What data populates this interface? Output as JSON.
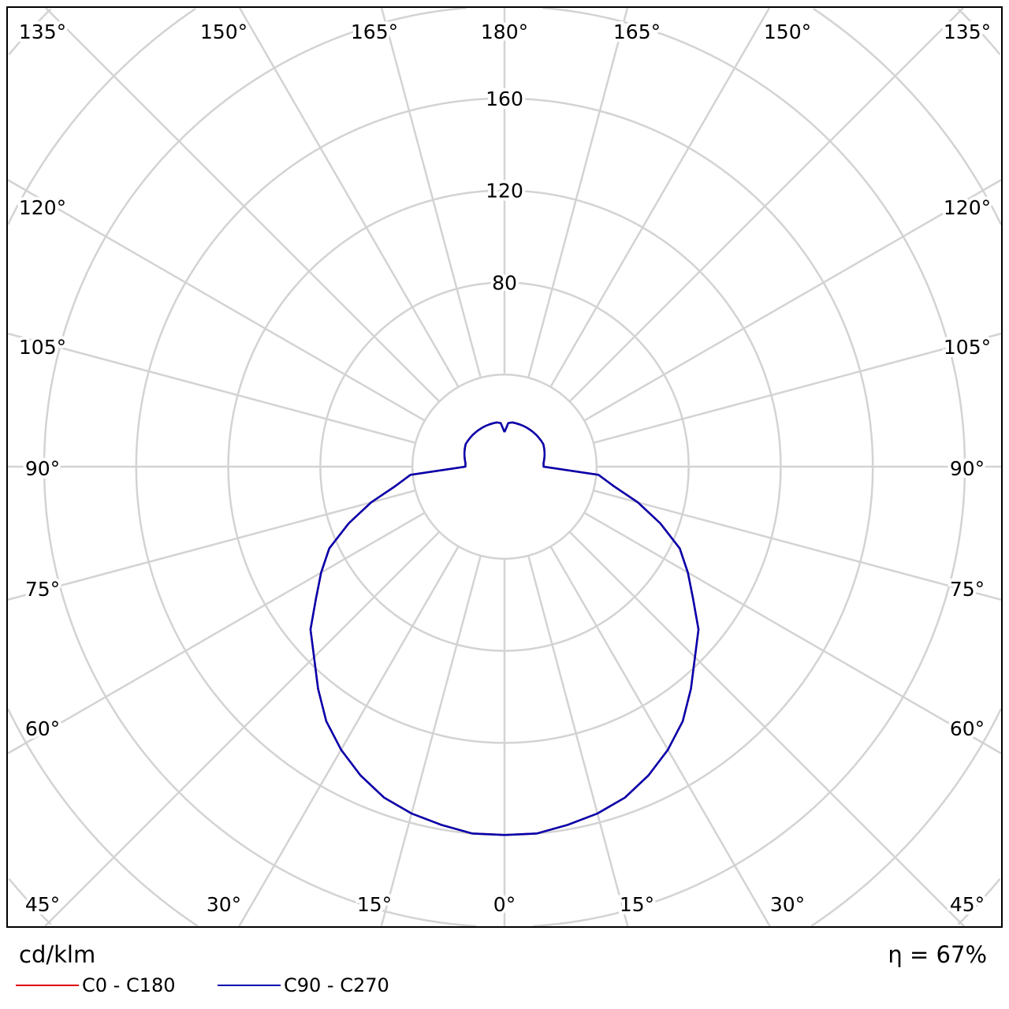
{
  "chart_data": {
    "type": "polar",
    "unit_label": "cd/klm",
    "efficiency_label": "η = 67%",
    "radial_ticks": [
      40,
      80,
      120,
      160,
      200,
      240,
      280,
      320
    ],
    "radial_tick_labels": [
      "80",
      "120",
      "160"
    ],
    "angle_tick_labels": {
      "top": [
        "135°",
        "150°",
        "165°",
        "180°",
        "165°",
        "150°",
        "135°"
      ],
      "left": [
        "120°",
        "105°",
        "90°",
        "75°",
        "60°",
        "45°"
      ],
      "right": [
        "120°",
        "105°",
        "90°",
        "75°",
        "60°",
        "45°"
      ],
      "bottom": [
        "30°",
        "15°",
        "0°",
        "15°",
        "30°"
      ]
    },
    "grid": true,
    "legend_position": "bottom-left",
    "angles": [
      0,
      5,
      10,
      15,
      20,
      25,
      30,
      35,
      40,
      45,
      50,
      55,
      60,
      65,
      70,
      75,
      80,
      85,
      90,
      95,
      100,
      105,
      110,
      115,
      120,
      125,
      130,
      135,
      140,
      145,
      150,
      155,
      160,
      165,
      170,
      175,
      180
    ],
    "series": [
      {
        "name": "C0 - C180",
        "color": "#e00000",
        "values": [
          160,
          160,
          158,
          156,
          153,
          148,
          142,
          135,
          126,
          117,
          110,
          100,
          92,
          84,
          72,
          60,
          48,
          41,
          17,
          17,
          17.5,
          18,
          18.5,
          19,
          19.5,
          19.5,
          19.5,
          19.5,
          19.5,
          19.5,
          19.5,
          19.5,
          19.5,
          19.5,
          19.5,
          19,
          15
        ]
      },
      {
        "name": "C90 - C270",
        "color": "#0000b0",
        "values": [
          160,
          160,
          158,
          156,
          153,
          148,
          142,
          135,
          126,
          117,
          110,
          100,
          92,
          84,
          72,
          60,
          48,
          41,
          17,
          17,
          17.5,
          18,
          18.5,
          19,
          19.5,
          19.5,
          19.5,
          19.5,
          19.5,
          19.5,
          19.5,
          19.5,
          19.5,
          19.5,
          19.5,
          19,
          15
        ]
      }
    ]
  }
}
